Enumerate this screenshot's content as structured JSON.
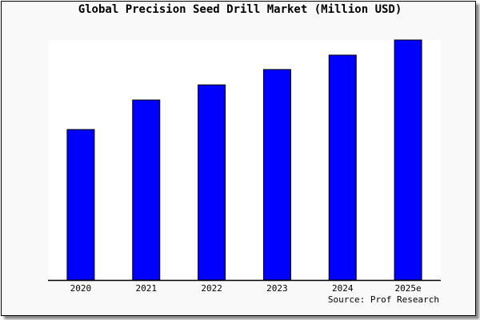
{
  "chart_data": {
    "type": "bar",
    "title": "Global Precision Seed Drill Market (Million USD)",
    "source": "Source: Prof Research",
    "categories": [
      "2020",
      "2021",
      "2022",
      "2023",
      "2024",
      "2025e"
    ],
    "values": [
      62.7,
      75.0,
      81.3,
      87.7,
      93.7,
      100.0
    ],
    "value_note_units": "relative (no value axis printed)",
    "ylim": [
      0,
      100
    ],
    "xlabel": "",
    "ylabel": "",
    "grid": false,
    "legend": "none",
    "colors": {
      "bar": "#0000ff",
      "bar_outline": "#000000",
      "plot_bg": "#ffffff",
      "frame_bg": "#f9f9f9"
    }
  }
}
